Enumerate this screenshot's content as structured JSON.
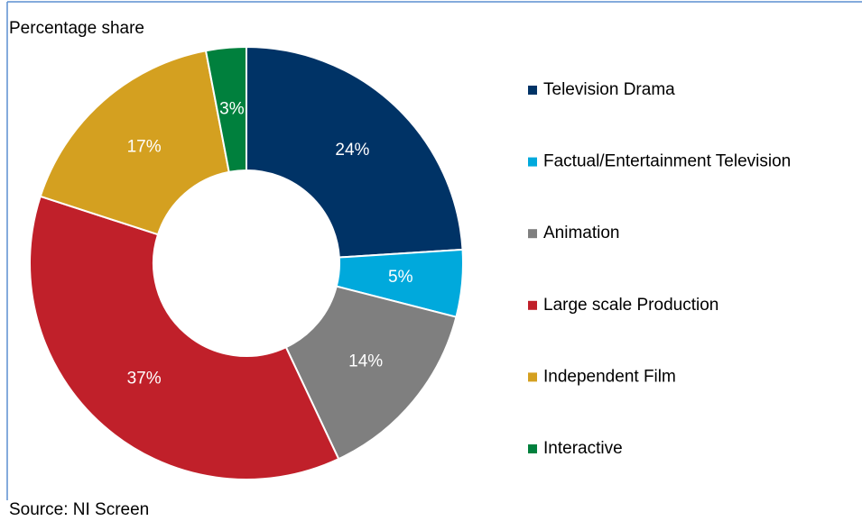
{
  "chart_data": {
    "type": "donut",
    "title": "Percentage share",
    "source": "Source: NI Screen",
    "categories": [
      "Television Drama",
      "Factual/Entertainment Television",
      "Animation",
      "Large scale Production",
      "Independent Film",
      "Interactive"
    ],
    "values": [
      24,
      5,
      14,
      37,
      17,
      3
    ],
    "value_labels": [
      "24%",
      "5%",
      "14%",
      "37%",
      "17%",
      "3%"
    ],
    "colors": [
      "#003366",
      "#00a9dc",
      "#7f7f7f",
      "#c0202a",
      "#d4a020",
      "#00803d"
    ],
    "legend": "right"
  }
}
